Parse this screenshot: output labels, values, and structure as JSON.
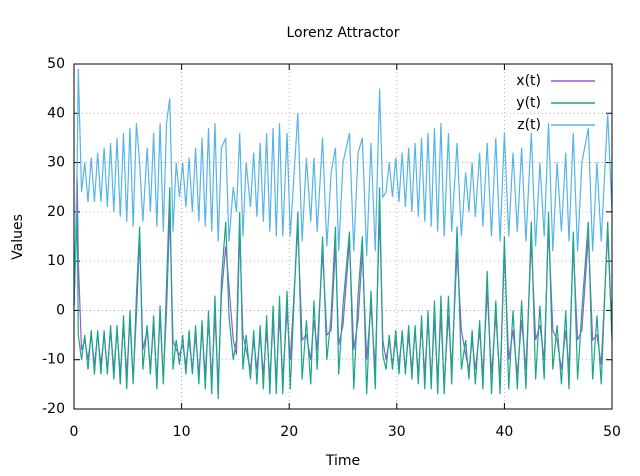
{
  "chart_data": {
    "type": "line",
    "title": "Lorenz Attractor",
    "x_label": "Time",
    "y_label": "Values",
    "x": [
      0,
      0.3,
      0.4,
      0.7,
      1.0,
      1.3,
      1.6,
      1.9,
      2.2,
      2.5,
      2.8,
      3.1,
      3.4,
      3.7,
      4.0,
      4.3,
      4.6,
      4.9,
      5.2,
      5.5,
      5.8,
      6.1,
      6.4,
      6.8,
      7.1,
      7.4,
      7.7,
      8.0,
      8.3,
      8.6,
      8.9,
      9.2,
      9.5,
      9.8,
      10.1,
      10.4,
      10.7,
      11.0,
      11.3,
      11.6,
      11.9,
      12.2,
      12.5,
      12.8,
      13.1,
      13.4,
      13.7,
      14.1,
      14.4,
      14.8,
      15.1,
      15.4,
      15.7,
      16.0,
      16.4,
      16.7,
      17.0,
      17.3,
      17.6,
      17.9,
      18.2,
      18.5,
      18.8,
      19.1,
      19.4,
      19.8,
      20.1,
      20.8,
      21.2,
      21.6,
      22.0,
      22.3,
      22.6,
      23.1,
      23.5,
      23.9,
      24.3,
      24.6,
      25.0,
      25.6,
      26.0,
      26.4,
      26.8,
      27.2,
      27.6,
      28.0,
      28.4,
      28.7,
      29.0,
      29.3,
      29.6,
      29.9,
      30.2,
      30.5,
      30.8,
      31.1,
      31.4,
      31.7,
      32.0,
      32.3,
      32.6,
      32.9,
      33.2,
      33.5,
      33.8,
      34.1,
      34.4,
      34.8,
      35.1,
      35.6,
      36.0,
      36.4,
      36.7,
      37.0,
      37.3,
      37.7,
      38.0,
      38.4,
      38.8,
      39.2,
      39.6,
      40.0,
      40.4,
      40.8,
      41.2,
      41.6,
      42.0,
      42.5,
      42.9,
      43.3,
      43.7,
      44.1,
      44.5,
      44.9,
      45.3,
      45.7,
      46.0,
      46.4,
      46.8,
      47.2,
      47.8,
      48.2,
      48.6,
      49.0,
      49.6,
      50.0
    ],
    "series": [
      {
        "name": "x(t)",
        "color": "#9b59d0",
        "values": [
          1,
          27,
          10,
          -8,
          -6,
          -10,
          -5,
          -11,
          -5,
          -11,
          -5,
          -12,
          -4,
          -12,
          -4,
          -13,
          -3,
          -13,
          -2,
          -14,
          -1,
          15,
          -8,
          -4,
          -12,
          -3,
          -14,
          -1,
          -14,
          0,
          20,
          -6,
          -8,
          -9,
          -7,
          -11,
          -6,
          -12,
          -5,
          -13,
          -4,
          -13,
          -2,
          -14,
          -1,
          -15,
          3,
          13,
          5,
          -6,
          -9,
          16,
          -5,
          -8,
          -12,
          -6,
          -12,
          -5,
          -13,
          -4,
          -14,
          -2,
          -14,
          -1,
          -14,
          0,
          -10,
          17,
          -6,
          -5,
          -10,
          -2,
          -8,
          12,
          -5,
          -4,
          13,
          -7,
          -3,
          14,
          -8,
          -2,
          12,
          -10,
          1,
          -12,
          20,
          -6,
          -10,
          -6,
          -11,
          -6,
          -11,
          -5,
          -12,
          -5,
          -12,
          -4,
          -13,
          -3,
          -13,
          -2,
          -14,
          -2,
          -14,
          -1,
          -15,
          -1,
          -12,
          12,
          -4,
          -9,
          -12,
          -6,
          -12,
          -4,
          -13,
          4,
          -13,
          -1,
          -14,
          12,
          -10,
          -4,
          -13,
          -2,
          -12,
          14,
          -6,
          -3,
          -10,
          17,
          -4,
          -6,
          -12,
          -4,
          -12,
          13,
          -6,
          -4,
          15,
          -6,
          -5,
          -11,
          16,
          -5
        ]
      },
      {
        "name": "y(t)",
        "color": "#1aa68a",
        "values": [
          1,
          20,
          -5,
          -10,
          -5,
          -12,
          -4,
          -13,
          -4,
          -13,
          -4,
          -13,
          -3,
          -14,
          -3,
          -15,
          -1,
          -16,
          0,
          -15,
          3,
          17,
          -12,
          -3,
          -13,
          -1,
          -16,
          1,
          -15,
          5,
          25,
          -12,
          -6,
          -11,
          -5,
          -13,
          -4,
          -13,
          -3,
          -15,
          -2,
          -16,
          0,
          -17,
          3,
          -18,
          6,
          18,
          -1,
          -10,
          -6,
          20,
          -12,
          -5,
          -14,
          -4,
          -15,
          -3,
          -16,
          -1,
          -17,
          1,
          -17,
          3,
          -17,
          4,
          -16,
          20,
          -14,
          -2,
          -15,
          2,
          -12,
          15,
          -10,
          -1,
          17,
          -13,
          1,
          16,
          -16,
          3,
          15,
          -17,
          4,
          -16,
          25,
          -9,
          -12,
          -5,
          -12,
          -4,
          -13,
          -4,
          -13,
          -3,
          -14,
          -3,
          -15,
          -1,
          -16,
          0,
          -16,
          2,
          -17,
          3,
          -17,
          3,
          -15,
          17,
          -12,
          -6,
          -14,
          -4,
          -15,
          -2,
          -16,
          8,
          -17,
          2,
          -17,
          15,
          -16,
          0,
          -16,
          2,
          -16,
          18,
          -14,
          1,
          -14,
          20,
          -12,
          -3,
          -15,
          0,
          -16,
          16,
          -14,
          0,
          18,
          -14,
          -1,
          -15,
          18,
          -6
        ]
      },
      {
        "name": "z(t)",
        "color": "#56b4e9",
        "values": [
          1,
          30,
          49,
          24,
          30,
          22,
          31,
          22,
          32,
          22,
          33,
          21,
          34,
          20,
          35,
          19,
          36,
          18,
          37,
          17,
          38,
          30,
          18,
          33,
          20,
          36,
          17,
          38,
          16,
          38,
          43,
          16,
          30,
          23,
          30,
          21,
          31,
          20,
          33,
          18,
          35,
          17,
          37,
          16,
          38,
          14,
          33,
          35,
          14,
          25,
          20,
          36,
          15,
          30,
          21,
          32,
          19,
          34,
          18,
          36,
          16,
          37,
          15,
          38,
          15,
          36,
          15,
          40,
          14,
          31,
          18,
          31,
          16,
          35,
          13,
          28,
          33,
          12,
          30,
          36,
          12,
          32,
          35,
          11,
          34,
          12,
          45,
          23,
          24,
          30,
          23,
          31,
          22,
          32,
          21,
          33,
          20,
          34,
          19,
          35,
          18,
          36,
          17,
          37,
          16,
          38,
          15,
          36,
          16,
          34,
          15,
          28,
          20,
          30,
          19,
          32,
          17,
          34,
          15,
          35,
          14,
          36,
          15,
          32,
          16,
          33,
          14,
          36,
          13,
          30,
          15,
          38,
          12,
          30,
          16,
          32,
          14,
          36,
          12,
          30,
          37,
          12,
          30,
          14,
          40,
          20
        ]
      }
    ],
    "xlim": [
      0,
      50
    ],
    "ylim": [
      -20,
      50
    ],
    "xticks": [
      0,
      10,
      20,
      30,
      40,
      50
    ],
    "yticks": [
      -20,
      -10,
      0,
      10,
      20,
      30,
      40,
      50
    ],
    "grid": true,
    "legend": "top-right"
  }
}
